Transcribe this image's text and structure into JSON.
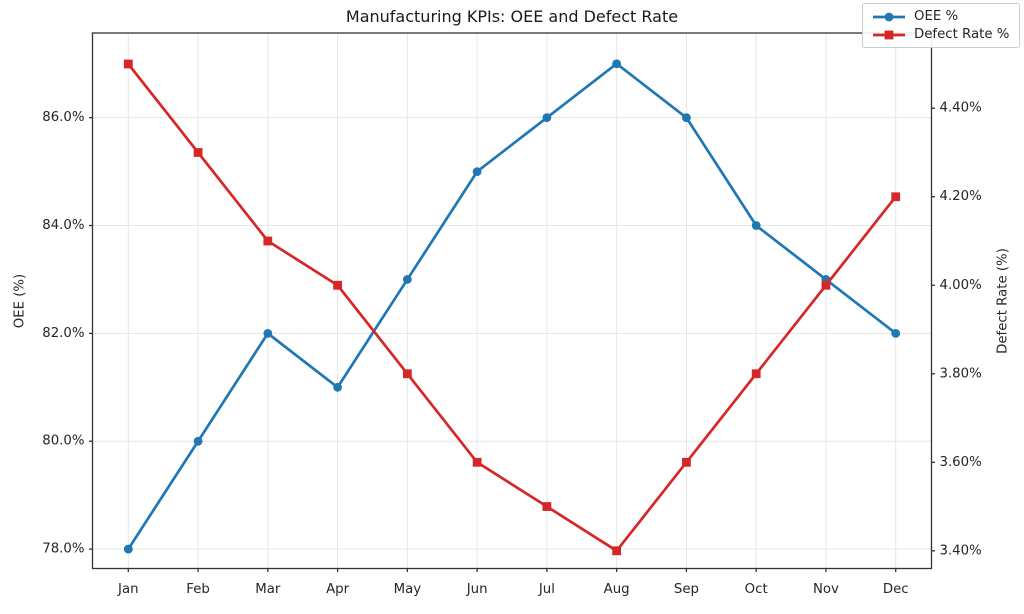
{
  "chart_data": {
    "type": "line",
    "title": "Manufacturing KPIs: OEE and Defect Rate",
    "categories": [
      "Jan",
      "Feb",
      "Mar",
      "Apr",
      "May",
      "Jun",
      "Jul",
      "Aug",
      "Sep",
      "Oct",
      "Nov",
      "Dec"
    ],
    "series": [
      {
        "name": "OEE %",
        "axis": "left",
        "color": "#1f77b4",
        "marker": "circle",
        "values": [
          78.0,
          80.0,
          82.0,
          81.0,
          83.0,
          85.0,
          86.0,
          87.0,
          86.0,
          84.0,
          83.0,
          82.0
        ]
      },
      {
        "name": "Defect Rate %",
        "axis": "right",
        "color": "#d62728",
        "marker": "square",
        "values": [
          4.5,
          4.3,
          4.1,
          4.0,
          3.8,
          3.6,
          3.5,
          3.4,
          3.6,
          3.8,
          4.0,
          4.2
        ]
      }
    ],
    "left_axis": {
      "label": "OEE (%)",
      "ticks": [
        78,
        80,
        82,
        84,
        86
      ],
      "tick_labels": [
        "78.0%",
        "80.0%",
        "82.0%",
        "84.0%",
        "86.0%"
      ],
      "range": [
        77.64,
        87.57
      ]
    },
    "right_axis": {
      "label": "Defect Rate (%)",
      "ticks": [
        3.4,
        3.6,
        3.8,
        4.0,
        4.2,
        4.4
      ],
      "tick_labels": [
        "3.40%",
        "3.60%",
        "3.80%",
        "4.00%",
        "4.20%",
        "4.40%"
      ],
      "range": [
        3.36,
        4.57
      ]
    },
    "grid": true,
    "legend_position": "top-right",
    "colors": {
      "grid": "#e6e6e6",
      "spine": "#333333",
      "tick_text": "#262626",
      "background": "#ffffff"
    }
  }
}
